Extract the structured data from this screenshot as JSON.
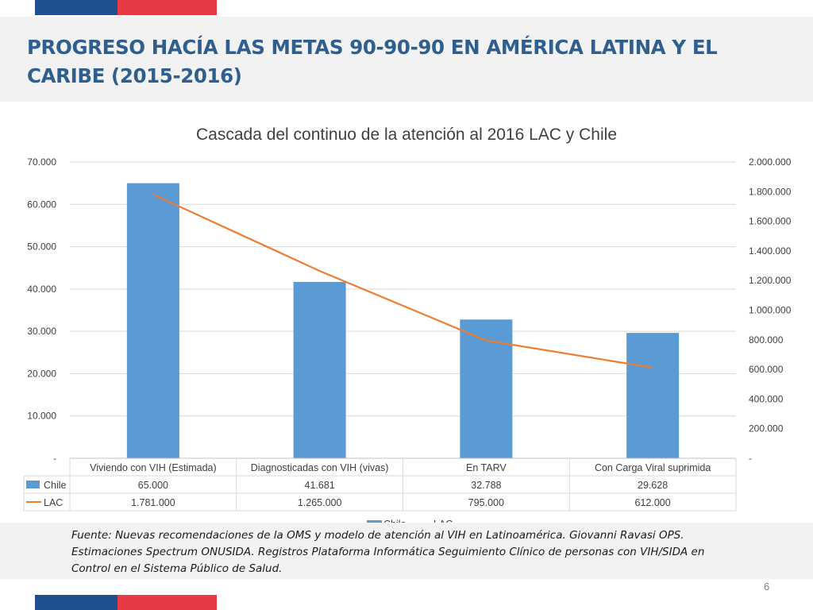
{
  "colors": {
    "flag_blue": "#1f4f8f",
    "flag_red": "#e63b45",
    "title": "#2f5f8e",
    "bar": "#5b9bd5",
    "line": "#ed7d31"
  },
  "slide": {
    "title": "PROGRESO HACÍA LAS METAS 90-90-90 EN AMÉRICA LATINA Y EL CARIBE (2015-2016)",
    "source": "Fuente: Nuevas recomendaciones de la OMS y modelo de atención al VIH en Latinoamérica. Giovanni Ravasi OPS. Estimaciones Spectrum ONUSIDA. Registros Plataforma Informática Seguimiento Clínico de personas con VIH/SIDA en Control en el Sistema Público de Salud.",
    "page_number": "6"
  },
  "chart_data": {
    "type": "bar",
    "title": "Cascada del continuo de la atención al 2016 LAC y Chile",
    "categories": [
      "Viviendo con VIH (Estimada)",
      "Diagnosticadas con VIH (vivas)",
      "En TARV",
      "Con Carga Viral suprimida"
    ],
    "series": [
      {
        "name": "Chile",
        "type": "bar",
        "axis": "left",
        "values": [
          65000,
          41681,
          32788,
          29628
        ],
        "labels": [
          "65.000",
          "41.681",
          "32.788",
          "29.628"
        ]
      },
      {
        "name": "LAC",
        "type": "line",
        "axis": "right",
        "values": [
          1781000,
          1265000,
          795000,
          612000
        ],
        "labels": [
          "1.781.000",
          "1.265.000",
          "795.000",
          "612.000"
        ]
      }
    ],
    "y_left": {
      "ylim": [
        0,
        70000
      ],
      "ticks": [
        0,
        10000,
        20000,
        30000,
        40000,
        50000,
        60000,
        70000
      ],
      "tick_labels": [
        "-",
        "10.000",
        "20.000",
        "30.000",
        "40.000",
        "50.000",
        "60.000",
        "70.000"
      ]
    },
    "y_right": {
      "ylim": [
        0,
        2000000
      ],
      "ticks": [
        0,
        200000,
        400000,
        600000,
        800000,
        1000000,
        1200000,
        1400000,
        1600000,
        1800000,
        2000000
      ],
      "tick_labels": [
        "-",
        "200.000",
        "400.000",
        "600.000",
        "800.000",
        "1.000.000",
        "1.200.000",
        "1.400.000",
        "1.600.000",
        "1.800.000",
        "2.000.000"
      ]
    },
    "grid": true,
    "data_table": true,
    "legend_position": "bottom"
  }
}
